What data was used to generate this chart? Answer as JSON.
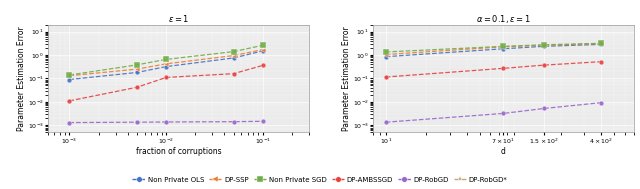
{
  "plot1": {
    "title": "$\\varepsilon = 1$",
    "xlabel": "fraction of corruptions",
    "ylabel": "Parameter Estimation Error",
    "xlim": [
      0.0006,
      0.3
    ],
    "ylim": [
      0.0005,
      20.0
    ],
    "xticks": [
      0.001,
      0.01,
      0.1
    ],
    "yticks": [
      0.001,
      0.01,
      0.1,
      1.0,
      10.0
    ],
    "series": {
      "Non Private OLS": {
        "x": [
          0.001,
          0.005,
          0.01,
          0.05,
          0.1
        ],
        "y": [
          0.09,
          0.18,
          0.32,
          0.75,
          1.5
        ],
        "color": "#4472c4",
        "marker": "o",
        "linestyle": "--",
        "markersize": 3.5
      },
      "DP-SSP": {
        "x": [
          0.001,
          0.005,
          0.01,
          0.05,
          0.1
        ],
        "y": [
          0.13,
          0.25,
          0.42,
          0.95,
          1.7
        ],
        "color": "#ed7d31",
        "marker": "<",
        "linestyle": "--",
        "markersize": 3.5
      },
      "Non Private SGD": {
        "x": [
          0.001,
          0.005,
          0.01,
          0.05,
          0.1
        ],
        "y": [
          0.14,
          0.38,
          0.65,
          1.4,
          2.6
        ],
        "color": "#70ad47",
        "marker": "s",
        "linestyle": "--",
        "markersize": 4.5
      },
      "DP-AMBSSGD": {
        "x": [
          0.001,
          0.005,
          0.01,
          0.05,
          0.1
        ],
        "y": [
          0.011,
          0.042,
          0.11,
          0.16,
          0.36
        ],
        "color": "#e84040",
        "marker": "o",
        "linestyle": "--",
        "markersize": 3.5
      },
      "DP-RobGD": {
        "x": [
          0.001,
          0.005,
          0.01,
          0.05,
          0.1
        ],
        "y": [
          0.0013,
          0.00135,
          0.00138,
          0.00142,
          0.00148
        ],
        "color": "#9966cc",
        "marker": "o",
        "linestyle": "--",
        "markersize": 3.5
      }
    }
  },
  "plot2": {
    "title": "$\\alpha=0.1, \\varepsilon = 1$",
    "xlabel": "d",
    "ylabel": "Parameter Estimation Error",
    "xlim": [
      8,
      700.0
    ],
    "ylim": [
      0.0005,
      20.0
    ],
    "xticks": [
      10,
      75,
      150,
      400
    ],
    "yticks": [
      0.001,
      0.01,
      0.1,
      1.0,
      10.0
    ],
    "series": {
      "Non Private OLS": {
        "x": [
          10,
          75,
          150,
          400
        ],
        "y": [
          0.85,
          1.85,
          2.35,
          2.85
        ],
        "color": "#4472c4",
        "marker": "o",
        "linestyle": "--",
        "markersize": 3.5
      },
      "DP-SSP": {
        "x": [
          10,
          75,
          150,
          400
        ],
        "y": [
          1.05,
          2.25,
          2.6,
          3.05
        ],
        "color": "#ed7d31",
        "marker": "<",
        "linestyle": "--",
        "markersize": 3.5
      },
      "Non Private SGD": {
        "x": [
          10,
          75,
          150,
          400
        ],
        "y": [
          1.35,
          2.35,
          2.75,
          3.15
        ],
        "color": "#70ad47",
        "marker": "s",
        "linestyle": "--",
        "markersize": 4.5
      },
      "DP-AMBSSGD": {
        "x": [
          10,
          75,
          150,
          400
        ],
        "y": [
          0.115,
          0.27,
          0.37,
          0.52
        ],
        "color": "#e84040",
        "marker": "o",
        "linestyle": "--",
        "markersize": 3.5
      },
      "DP-RobGD": {
        "x": [
          10,
          75,
          150,
          400
        ],
        "y": [
          0.00135,
          0.0032,
          0.0052,
          0.0092
        ],
        "color": "#9966cc",
        "marker": "o",
        "linestyle": "--",
        "markersize": 3.5
      }
    }
  },
  "legend": [
    {
      "label": "Non Private OLS",
      "color": "#4472c4",
      "marker": "o",
      "linestyle": "--"
    },
    {
      "label": "DP-SSP",
      "color": "#ed7d31",
      "marker": "<",
      "linestyle": "--"
    },
    {
      "label": "Non Private SGD",
      "color": "#70ad47",
      "marker": "s",
      "linestyle": "--"
    },
    {
      "label": "DP-AMBSSGD",
      "color": "#e84040",
      "marker": "o",
      "linestyle": "--"
    },
    {
      "label": "DP-RobGD",
      "color": "#9966cc",
      "marker": "o",
      "linestyle": "--"
    },
    {
      "label": "DP-RobGD*",
      "color": "#c8a882",
      "marker": "*",
      "linestyle": "--"
    }
  ],
  "bg_color": "#ebebeb",
  "fontsize": 5.5,
  "tick_fontsize": 4.5
}
